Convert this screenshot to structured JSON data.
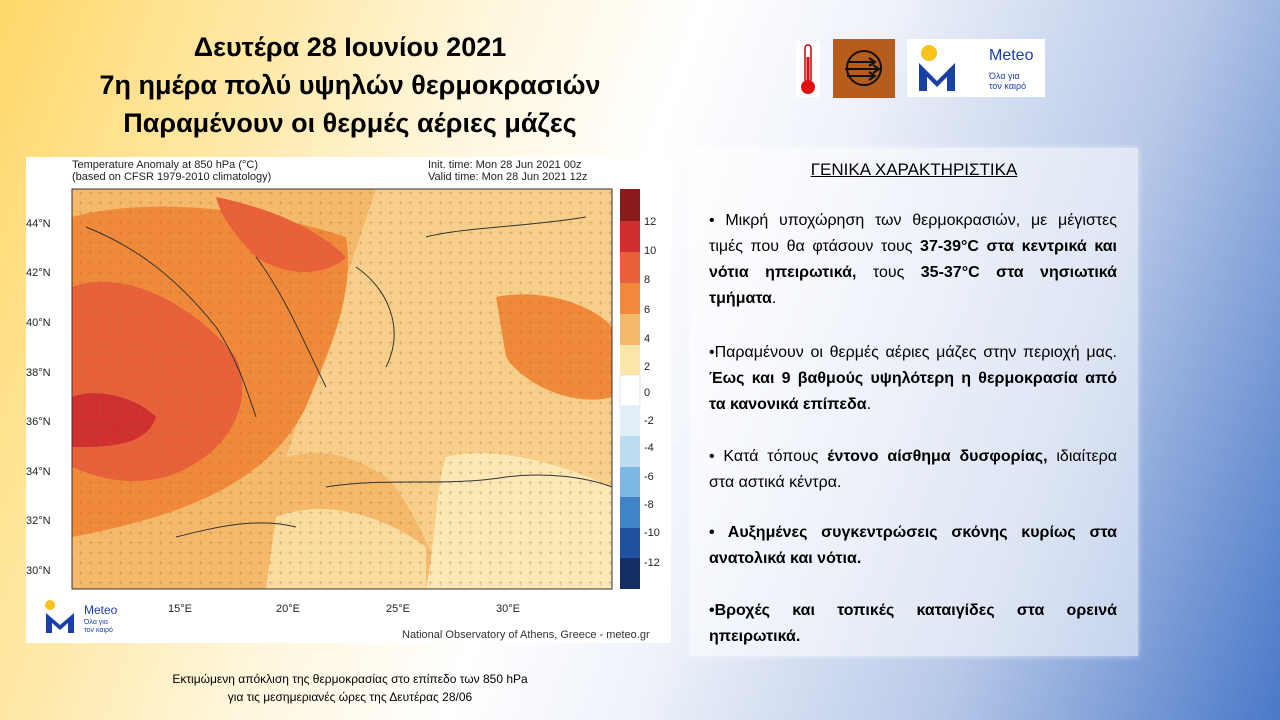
{
  "title": {
    "line1": "Δευτέρα 28 Ιουνίου 2021",
    "line2": "7η ημέρα πολύ υψηλών θερμοκρασιών",
    "line3": "Παραμένουν οι θερμές αέριες μάζες"
  },
  "icons": [
    "thermometer-icon",
    "wind-icon"
  ],
  "logo": {
    "name": "Meteo",
    "tagline1": "Όλα για",
    "tagline2": "τον καιρό"
  },
  "map": {
    "title_left1": "Temperature Anomaly at 850 hPa (°C)",
    "title_left2": "(based on CFSR 1979-2010 climatology)",
    "title_right1": "Init. time: Mon 28 Jun 2021 00z",
    "title_right2": "Valid time: Mon 28 Jun 2021 12z",
    "lat_labels": [
      "44°N",
      "42°N",
      "40°N",
      "38°N",
      "36°N",
      "34°N",
      "32°N",
      "30°N"
    ],
    "lon_labels": [
      "15°E",
      "20°E",
      "25°E",
      "30°E"
    ],
    "colorbar_labels": [
      "12",
      "10",
      "8",
      "6",
      "4",
      "2",
      "0",
      "-2",
      "-4",
      "-6",
      "-8",
      "-10",
      "-12"
    ],
    "credit": "National Observatory of Athens, Greece - meteo.gr"
  },
  "caption": {
    "line1": "Εκτιμώμενη απόκλιση της θερμοκρασίας στο επίπεδο των 850 hPa",
    "line2": "για τις μεσημεριανές ώρες της Δευτέρας 28/06"
  },
  "panel": {
    "heading": "ΓΕΝΙΚΑ ΧΑΡΑΚΤΗΡΙΣΤΙΚΑ",
    "b1_a": "• Μικρή υποχώρηση των θερμοκρασιών, με μέγιστες τιμές που θα φτάσουν τους ",
    "b1_b": "37-39°C στα κεντρικά και νότια ηπειρωτικά,",
    "b1_c": " τους ",
    "b1_d": "35-37°C στα νησιωτικά τμήματα",
    "b1_e": ".",
    "b2_a": "•Παραμένουν οι θερμές αέριες μάζες στην περιοχή μας. ",
    "b2_b": "Έως και 9 βαθμούς υψηλότερη η θερμοκρασία από τα κανονικά επίπεδα",
    "b2_c": ".",
    "b3_a": "• Κατά τόπους ",
    "b3_b": "έντονο αίσθημα δυσφορίας,",
    "b3_c": " ιδιαίτερα στα αστικά κέντρα.",
    "b4": "• Αυξημένες συγκεντρώσεις σκόνης κυρίως στα ανατολικά και νότια.",
    "b5": "•Βροχές και τοπικές καταιγίδες στα ορεινά ηπειρωτικά."
  }
}
